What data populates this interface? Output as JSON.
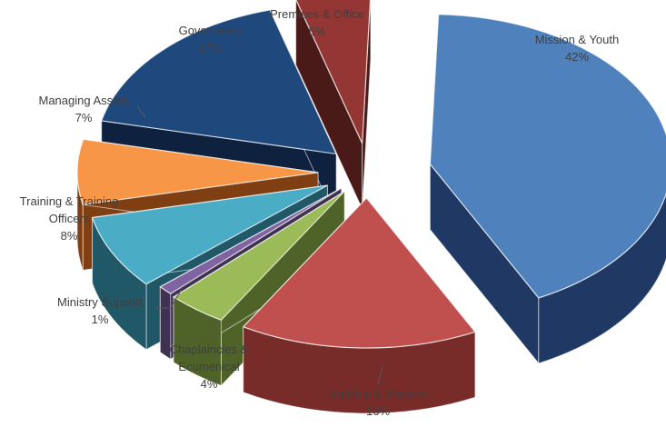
{
  "chart_data": {
    "type": "pie",
    "variant": "3d-exploded",
    "legend": "none",
    "slices": [
      {
        "label": "Mission & Youth",
        "label_lines": [
          "Mission & Youth"
        ],
        "value": 42,
        "value_label": "42%",
        "color": "#4F81BD",
        "side_color": "#1F3864"
      },
      {
        "label": "Building & Manses",
        "label_lines": [
          "Building & Manses"
        ],
        "value": 16,
        "value_label": "16%",
        "color": "#C0504D",
        "side_color": "#772C2A"
      },
      {
        "label": "Chaplaincies & Ecumenical",
        "label_lines": [
          "Chaplaincies &",
          "Ecumenical"
        ],
        "value": 4,
        "value_label": "4%",
        "color": "#9BBB59",
        "side_color": "#4F6228"
      },
      {
        "label": "Ministry Support",
        "label_lines": [
          "Ministry Support"
        ],
        "value": 1,
        "value_label": "1%",
        "color": "#8064A2",
        "side_color": "#3F3151"
      },
      {
        "label": "Training & Training Officers",
        "label_lines": [
          "Training & Training",
          "Officers"
        ],
        "value": 8,
        "value_label": "8%",
        "color": "#4BACC6",
        "side_color": "#215868"
      },
      {
        "label": "Managing Assets",
        "label_lines": [
          "Managing Assets"
        ],
        "value": 7,
        "value_label": "7%",
        "color": "#F79646",
        "side_color": "#7F3F12"
      },
      {
        "label": "Governance",
        "label_lines": [
          "Governance"
        ],
        "value": 17,
        "value_label": "17%",
        "color": "#1F497D",
        "side_color": "#0E2240"
      },
      {
        "label": "Premises & Office",
        "label_lines": [
          "Premises & Office"
        ],
        "value": 5,
        "value_label": "5%",
        "color": "#943634",
        "side_color": "#4A1A19"
      }
    ]
  }
}
